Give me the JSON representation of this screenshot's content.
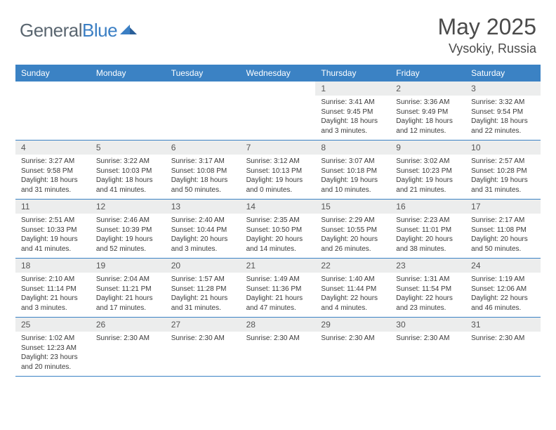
{
  "brand": {
    "name_a": "General",
    "name_b": "Blue"
  },
  "title": "May 2025",
  "location": "Vysokiy, Russia",
  "colors": {
    "header_bg": "#3b82c4",
    "header_text": "#ffffff",
    "daynum_bg": "#eceded",
    "border": "#3b82c4",
    "logo_gray": "#5a6670",
    "logo_blue": "#3b7fc4"
  },
  "day_names": [
    "Sunday",
    "Monday",
    "Tuesday",
    "Wednesday",
    "Thursday",
    "Friday",
    "Saturday"
  ],
  "weeks": [
    [
      {
        "n": "",
        "lines": []
      },
      {
        "n": "",
        "lines": []
      },
      {
        "n": "",
        "lines": []
      },
      {
        "n": "",
        "lines": []
      },
      {
        "n": "1",
        "lines": [
          "Sunrise: 3:41 AM",
          "Sunset: 9:45 PM",
          "Daylight: 18 hours and 3 minutes."
        ]
      },
      {
        "n": "2",
        "lines": [
          "Sunrise: 3:36 AM",
          "Sunset: 9:49 PM",
          "Daylight: 18 hours and 12 minutes."
        ]
      },
      {
        "n": "3",
        "lines": [
          "Sunrise: 3:32 AM",
          "Sunset: 9:54 PM",
          "Daylight: 18 hours and 22 minutes."
        ]
      }
    ],
    [
      {
        "n": "4",
        "lines": [
          "Sunrise: 3:27 AM",
          "Sunset: 9:58 PM",
          "Daylight: 18 hours and 31 minutes."
        ]
      },
      {
        "n": "5",
        "lines": [
          "Sunrise: 3:22 AM",
          "Sunset: 10:03 PM",
          "Daylight: 18 hours and 41 minutes."
        ]
      },
      {
        "n": "6",
        "lines": [
          "Sunrise: 3:17 AM",
          "Sunset: 10:08 PM",
          "Daylight: 18 hours and 50 minutes."
        ]
      },
      {
        "n": "7",
        "lines": [
          "Sunrise: 3:12 AM",
          "Sunset: 10:13 PM",
          "Daylight: 19 hours and 0 minutes."
        ]
      },
      {
        "n": "8",
        "lines": [
          "Sunrise: 3:07 AM",
          "Sunset: 10:18 PM",
          "Daylight: 19 hours and 10 minutes."
        ]
      },
      {
        "n": "9",
        "lines": [
          "Sunrise: 3:02 AM",
          "Sunset: 10:23 PM",
          "Daylight: 19 hours and 21 minutes."
        ]
      },
      {
        "n": "10",
        "lines": [
          "Sunrise: 2:57 AM",
          "Sunset: 10:28 PM",
          "Daylight: 19 hours and 31 minutes."
        ]
      }
    ],
    [
      {
        "n": "11",
        "lines": [
          "Sunrise: 2:51 AM",
          "Sunset: 10:33 PM",
          "Daylight: 19 hours and 41 minutes."
        ]
      },
      {
        "n": "12",
        "lines": [
          "Sunrise: 2:46 AM",
          "Sunset: 10:39 PM",
          "Daylight: 19 hours and 52 minutes."
        ]
      },
      {
        "n": "13",
        "lines": [
          "Sunrise: 2:40 AM",
          "Sunset: 10:44 PM",
          "Daylight: 20 hours and 3 minutes."
        ]
      },
      {
        "n": "14",
        "lines": [
          "Sunrise: 2:35 AM",
          "Sunset: 10:50 PM",
          "Daylight: 20 hours and 14 minutes."
        ]
      },
      {
        "n": "15",
        "lines": [
          "Sunrise: 2:29 AM",
          "Sunset: 10:55 PM",
          "Daylight: 20 hours and 26 minutes."
        ]
      },
      {
        "n": "16",
        "lines": [
          "Sunrise: 2:23 AM",
          "Sunset: 11:01 PM",
          "Daylight: 20 hours and 38 minutes."
        ]
      },
      {
        "n": "17",
        "lines": [
          "Sunrise: 2:17 AM",
          "Sunset: 11:08 PM",
          "Daylight: 20 hours and 50 minutes."
        ]
      }
    ],
    [
      {
        "n": "18",
        "lines": [
          "Sunrise: 2:10 AM",
          "Sunset: 11:14 PM",
          "Daylight: 21 hours and 3 minutes."
        ]
      },
      {
        "n": "19",
        "lines": [
          "Sunrise: 2:04 AM",
          "Sunset: 11:21 PM",
          "Daylight: 21 hours and 17 minutes."
        ]
      },
      {
        "n": "20",
        "lines": [
          "Sunrise: 1:57 AM",
          "Sunset: 11:28 PM",
          "Daylight: 21 hours and 31 minutes."
        ]
      },
      {
        "n": "21",
        "lines": [
          "Sunrise: 1:49 AM",
          "Sunset: 11:36 PM",
          "Daylight: 21 hours and 47 minutes."
        ]
      },
      {
        "n": "22",
        "lines": [
          "Sunrise: 1:40 AM",
          "Sunset: 11:44 PM",
          "Daylight: 22 hours and 4 minutes."
        ]
      },
      {
        "n": "23",
        "lines": [
          "Sunrise: 1:31 AM",
          "Sunset: 11:54 PM",
          "Daylight: 22 hours and 23 minutes."
        ]
      },
      {
        "n": "24",
        "lines": [
          "Sunrise: 1:19 AM",
          "Sunset: 12:06 AM",
          "Daylight: 22 hours and 46 minutes."
        ]
      }
    ],
    [
      {
        "n": "25",
        "lines": [
          "Sunrise: 1:02 AM",
          "Sunset: 12:23 AM",
          "Daylight: 23 hours and 20 minutes."
        ]
      },
      {
        "n": "26",
        "lines": [
          "Sunrise: 2:30 AM"
        ]
      },
      {
        "n": "27",
        "lines": [
          "Sunrise: 2:30 AM"
        ]
      },
      {
        "n": "28",
        "lines": [
          "Sunrise: 2:30 AM"
        ]
      },
      {
        "n": "29",
        "lines": [
          "Sunrise: 2:30 AM"
        ]
      },
      {
        "n": "30",
        "lines": [
          "Sunrise: 2:30 AM"
        ]
      },
      {
        "n": "31",
        "lines": [
          "Sunrise: 2:30 AM"
        ]
      }
    ]
  ]
}
